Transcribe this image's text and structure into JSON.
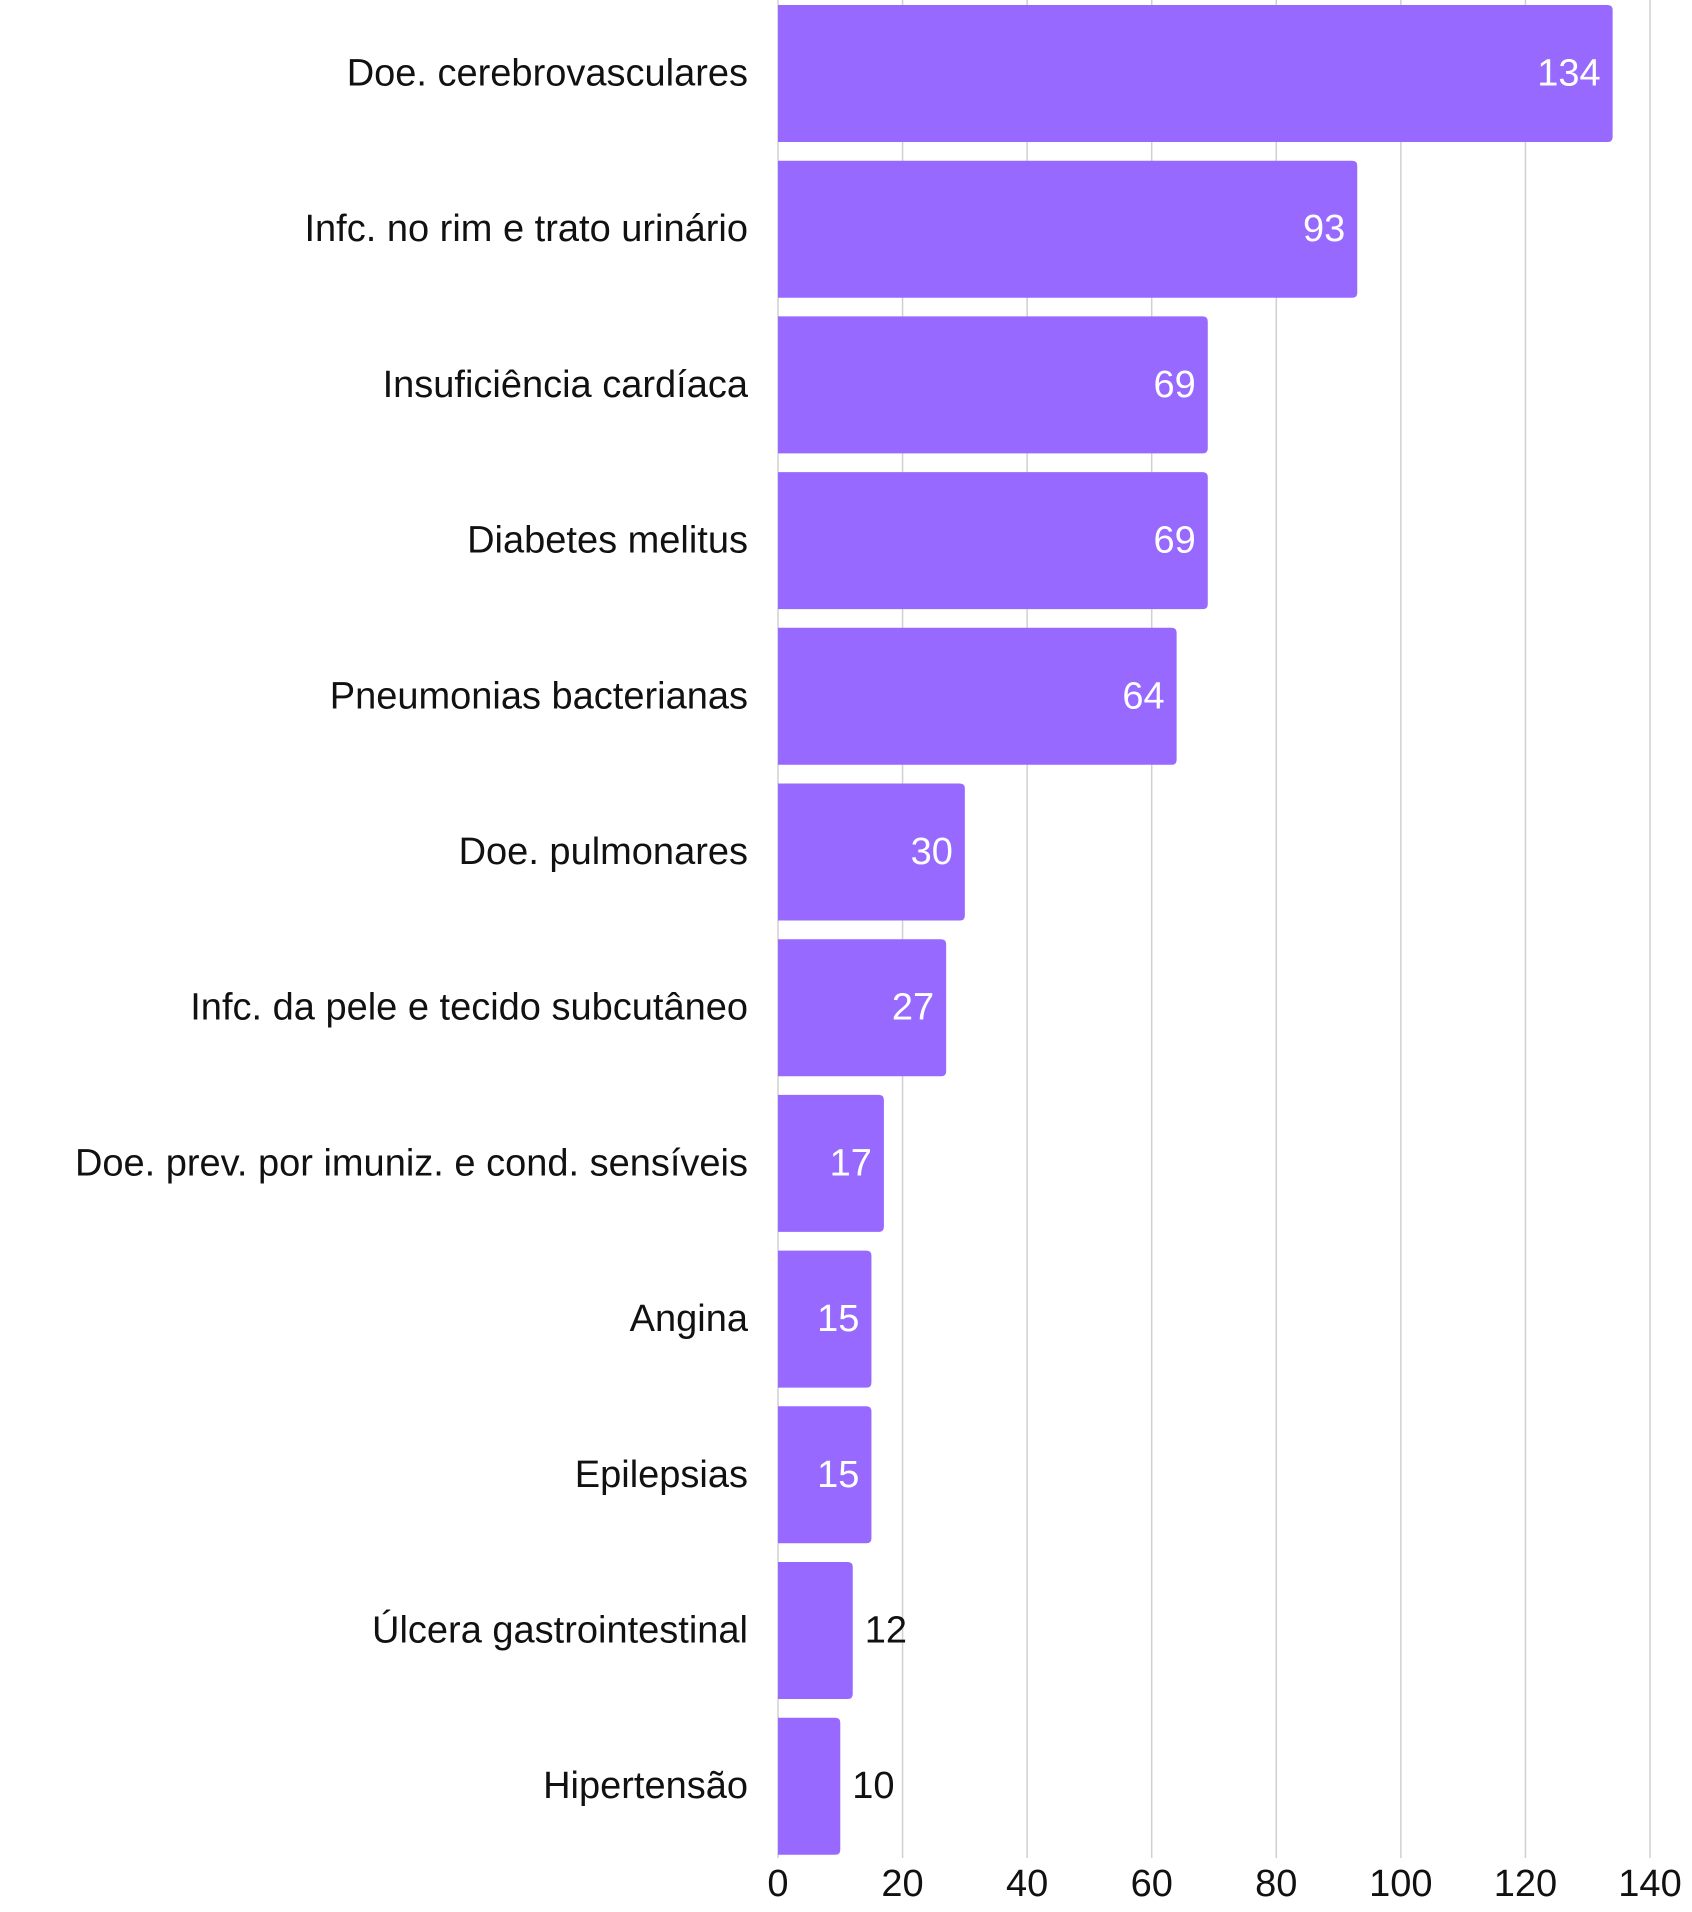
{
  "chart_data": {
    "type": "bar",
    "orientation": "horizontal",
    "title": "",
    "xlabel": "",
    "ylabel": "",
    "categories": [
      "Doe. cerebrovasculares",
      "Infc. no rim e trato urinário",
      "Insuficiência cardíaca",
      "Diabetes melitus",
      "Pneumonias bacterianas",
      "Doe. pulmonares",
      "Infc. da pele e tecido subcutâneo",
      "Doe. prev. por imuniz. e cond. sensíveis",
      "Angina",
      "Epilepsias",
      "Úlcera gastrointestinal",
      "Hipertensão"
    ],
    "values": [
      134,
      93,
      69,
      69,
      64,
      30,
      27,
      17,
      15,
      15,
      12,
      10
    ],
    "value_labels": [
      "134",
      "93",
      "69",
      "69",
      "64",
      "30",
      "27",
      "17",
      "15",
      "15",
      "12",
      "10"
    ],
    "xlim": [
      0,
      140
    ],
    "x_ticks": [
      0,
      20,
      40,
      60,
      80,
      100,
      120,
      140
    ],
    "x_tick_labels": [
      "0",
      "20",
      "40",
      "60",
      "80",
      "100",
      "120",
      "140"
    ],
    "grid": "vertical",
    "legend": "none",
    "bar_color": "#9769ff",
    "grid_color": "#d0d0d0",
    "label_inside_color": "#ffffff",
    "label_outside_color": "#111111"
  }
}
